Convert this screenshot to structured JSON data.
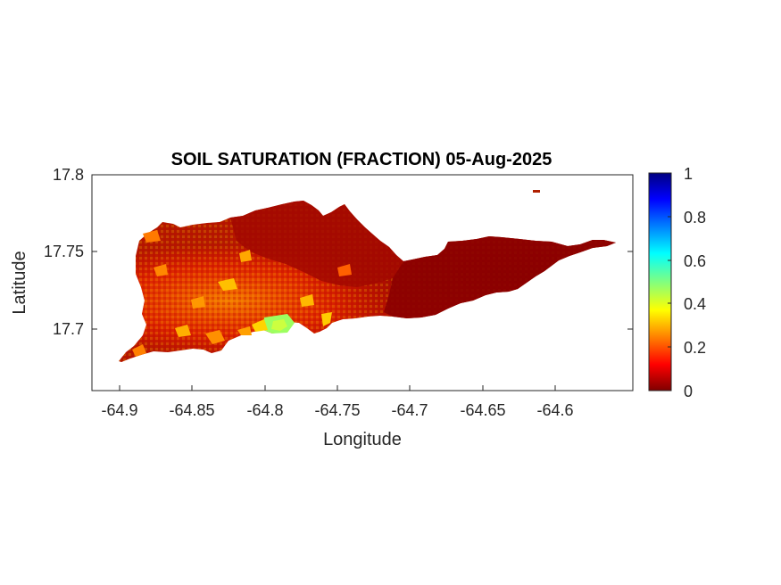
{
  "figure": {
    "title": "SOIL SATURATION (FRACTION) 05-Aug-2025",
    "xlabel": "Longitude",
    "ylabel": "Latitude",
    "x_ticks": [
      "-64.9",
      "-64.85",
      "-64.8",
      "-64.75",
      "-64.7",
      "-64.65",
      "-64.6"
    ],
    "y_ticks": [
      "17.8",
      "17.75",
      "17.7"
    ],
    "colorbar_ticks": [
      "1",
      "0.8",
      "0.6",
      "0.4",
      "0.2",
      "0"
    ],
    "colormap": "jet",
    "colors": {
      "axis": "#262626",
      "land_dry": "#8b0000",
      "land_mid": "#e02000",
      "land_wet": "#ffd700"
    }
  },
  "chart_data": {
    "type": "heatmap",
    "title": "SOIL SATURATION (FRACTION) 05-Aug-2025",
    "xlabel": "Longitude",
    "ylabel": "Latitude",
    "xlim": [
      -64.92,
      -64.54
    ],
    "ylim": [
      17.66,
      17.8
    ],
    "colorbar_range": [
      0,
      1
    ],
    "colormap": "jet",
    "grid": false,
    "region_values": [
      {
        "region": "west",
        "value_range": [
          0.1,
          0.35
        ]
      },
      {
        "region": "south-central",
        "value_range": [
          0.3,
          0.5
        ]
      },
      {
        "region": "north-central",
        "value_range": [
          0.02,
          0.15
        ]
      },
      {
        "region": "east",
        "value_range": [
          0.0,
          0.05
        ]
      }
    ]
  }
}
